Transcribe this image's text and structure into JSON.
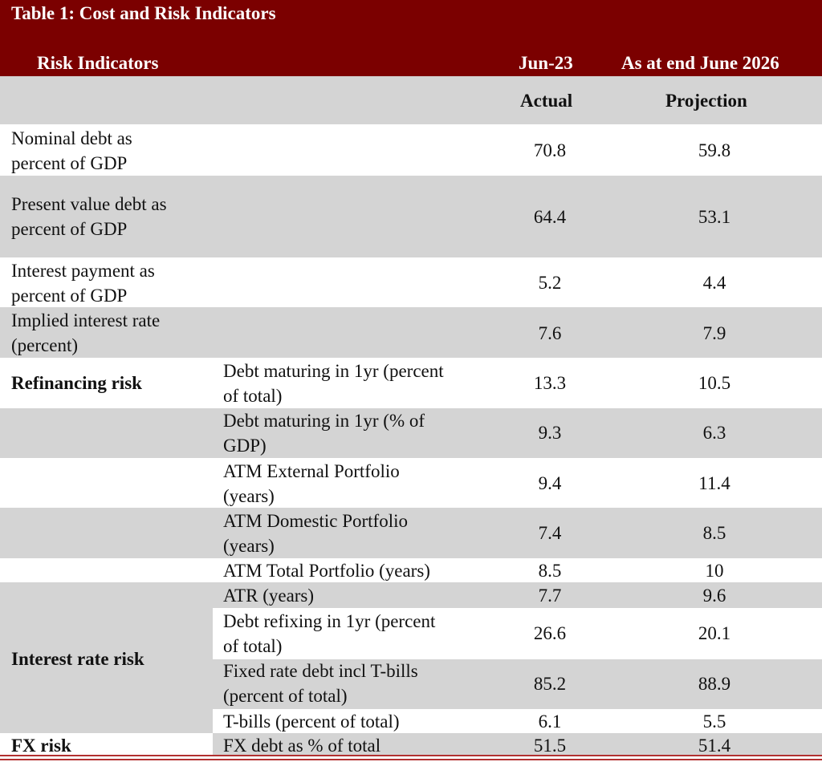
{
  "title": "Table 1: Cost and Risk Indicators",
  "header": {
    "risk_indicators": "Risk Indicators",
    "col1": "Jun-23",
    "col2": "As at end June 2026",
    "sub1": "Actual",
    "sub2": "Projection"
  },
  "rows": [
    {
      "category": "",
      "indicator": "Nominal debt as\npercent of GDP",
      "actual": "70.8",
      "projection": "59.8"
    },
    {
      "category": "",
      "indicator": "Present value debt as\npercent of GDP",
      "actual": "64.4",
      "projection": "53.1"
    },
    {
      "category": "",
      "indicator": "Interest payment as\npercent of GDP",
      "actual": "5.2",
      "projection": "4.4"
    },
    {
      "category": "",
      "indicator": "Implied interest rate\n(percent)",
      "actual": "7.6",
      "projection": "7.9"
    },
    {
      "category": "Refinancing risk",
      "indicator": "Debt maturing in 1yr (percent\nof total)",
      "actual": "13.3",
      "projection": "10.5"
    },
    {
      "category": "",
      "indicator": "Debt maturing in 1yr (% of\nGDP)",
      "actual": "9.3",
      "projection": "6.3"
    },
    {
      "category": "",
      "indicator": "ATM External Portfolio\n(years)",
      "actual": "9.4",
      "projection": "11.4"
    },
    {
      "category": "",
      "indicator": "ATM Domestic Portfolio\n(years)",
      "actual": "7.4",
      "projection": "8.5"
    },
    {
      "category": "",
      "indicator": "ATM Total Portfolio (years)",
      "actual": "8.5",
      "projection": "10"
    },
    {
      "category": "",
      "indicator": "ATR (years)",
      "actual": "7.7",
      "projection": "9.6"
    },
    {
      "category": "",
      "indicator": "Debt refixing in 1yr (percent\nof total)",
      "actual": "26.6",
      "projection": "20.1"
    },
    {
      "category": "Interest rate risk",
      "indicator": "Fixed rate debt incl T-bills\n(percent of total)",
      "actual": "85.2",
      "projection": "88.9"
    },
    {
      "category": "",
      "indicator": "T-bills (percent of total)",
      "actual": "6.1",
      "projection": "5.5"
    },
    {
      "category": "FX risk",
      "indicator": "FX debt as % of total",
      "actual": "51.5",
      "projection": "51.4"
    }
  ]
}
